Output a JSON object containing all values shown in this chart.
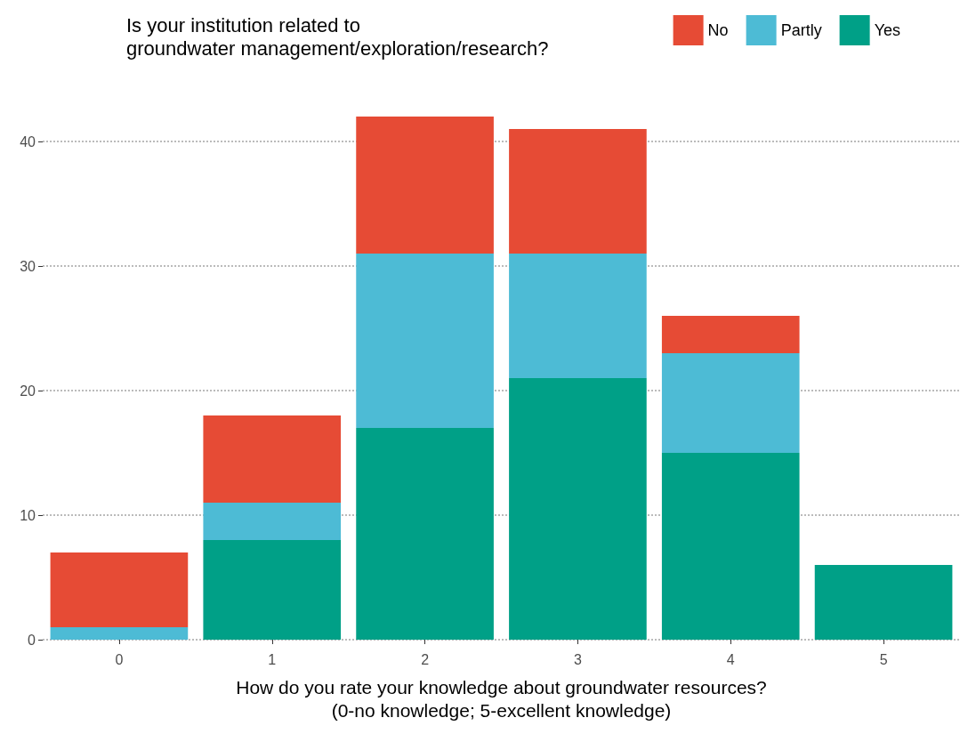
{
  "chart_data": {
    "type": "bar",
    "stacked": true,
    "legend_title": "Is your institution related to\ngroundwater management/exploration/research?",
    "xlabel": "How do you rate your knowledge about groundwater resources?\n(0-no knowledge; 5-excellent knowledge)",
    "categories": [
      "0",
      "1",
      "2",
      "3",
      "4",
      "5"
    ],
    "series": [
      {
        "name": "Yes",
        "color": "#00a087",
        "values": [
          0,
          8,
          17,
          21,
          15,
          6
        ]
      },
      {
        "name": "Partly",
        "color": "#4dbbd5",
        "values": [
          1,
          3,
          14,
          10,
          8,
          0
        ]
      },
      {
        "name": "No",
        "color": "#e64b35",
        "values": [
          6,
          7,
          11,
          10,
          3,
          0
        ]
      }
    ],
    "ylim": [
      0,
      42
    ],
    "yticks": [
      0,
      10,
      20,
      30,
      40
    ],
    "grid": "y",
    "legend": "top right"
  }
}
